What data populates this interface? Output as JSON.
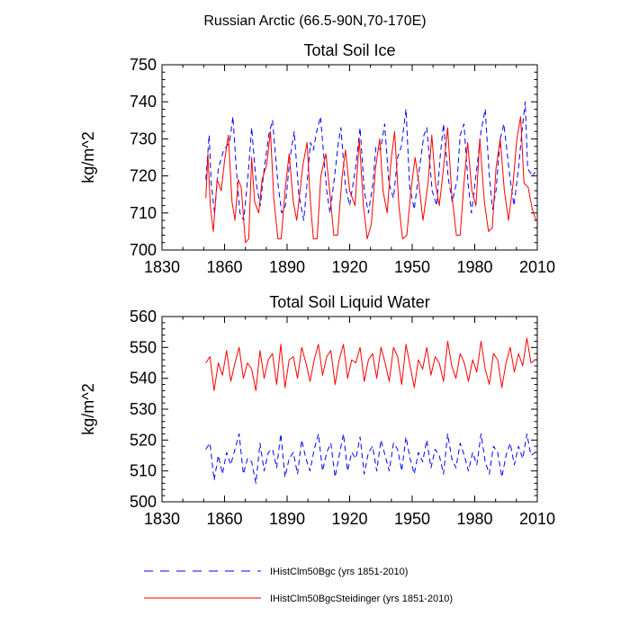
{
  "figure": {
    "title": "Russian Arctic (66.5-90N,70-170E)"
  },
  "chart_data": [
    {
      "type": "line",
      "title": "Total Soil Ice",
      "xlabel": "",
      "ylabel": "kg/m^2",
      "xlim": [
        1830,
        2010
      ],
      "ylim": [
        700,
        750
      ],
      "x_ticks": [
        1830,
        1860,
        1890,
        1920,
        1950,
        1980,
        2010
      ],
      "y_ticks": [
        700,
        710,
        720,
        730,
        740,
        750
      ],
      "grid": false,
      "series": [
        {
          "name": "IHistClm50Bgc (yrs 1851-2010)",
          "color": "#0000ff",
          "style": "dashed",
          "x": [
            1851.0,
            1852.6,
            1853.6,
            1855.2,
            1857.0,
            1859.6,
            1862.4,
            1864.0,
            1865.6,
            1867.4,
            1869.2,
            1871.4,
            1873.0,
            1875.2,
            1877.2,
            1878.6,
            1881.2,
            1883.0,
            1885.6,
            1887.4,
            1889.2,
            1891.2,
            1893.4,
            1895.6,
            1898.0,
            1899.6,
            1901.2,
            1902.6,
            1904.2,
            1906.0,
            1909.0,
            1910.6,
            1912.8,
            1914.6,
            1915.8,
            1918.0,
            1920.0,
            1922.8,
            1925.0,
            1927.0,
            1929.0,
            1931.2,
            1932.6,
            1934.8,
            1936.8,
            1938.8,
            1941.0,
            1943.0,
            1944.8,
            1947.0,
            1948.8,
            1951.0,
            1953.0,
            1955.6,
            1957.0,
            1959.6,
            1961.8,
            1963.2,
            1965.0,
            1967.4,
            1969.2,
            1971.6,
            1973.0,
            1974.8,
            1976.8,
            1978.4,
            1981.0,
            1983.0,
            1985.0,
            1987.0,
            1988.6,
            1990.2,
            1992.2,
            1994.0,
            1996.8,
            1998.8,
            2001.0,
            2002.6,
            2004.2,
            2005.4,
            2007.6,
            2009.0
          ],
          "y": [
            719,
            731,
            718,
            710,
            722,
            727,
            729,
            736,
            722,
            710,
            708,
            721,
            733,
            718,
            712,
            720,
            731,
            735,
            718,
            710,
            712,
            724,
            732,
            715,
            708,
            718,
            729,
            727,
            732,
            736,
            716,
            710,
            720,
            729,
            733,
            717,
            712,
            722,
            733,
            716,
            710,
            718,
            728,
            727,
            734,
            718,
            714,
            725,
            728,
            738,
            717,
            711,
            720,
            731,
            733,
            716,
            712,
            724,
            734,
            719,
            713,
            719,
            731,
            734,
            718,
            710,
            722,
            732,
            738,
            720,
            711,
            716,
            730,
            734,
            720,
            712,
            722,
            732,
            740,
            722,
            720,
            721
          ]
        },
        {
          "name": "IHistClm50BgcSteidinger (yrs 1851-2010)",
          "color": "#ff0000",
          "style": "solid",
          "x": [
            1851.0,
            1852.0,
            1853.2,
            1854.6,
            1856.4,
            1858.4,
            1860.0,
            1861.8,
            1863.6,
            1865.0,
            1866.6,
            1868.0,
            1870.0,
            1871.6,
            1873.0,
            1874.4,
            1876.4,
            1878.0,
            1880.2,
            1882.0,
            1883.6,
            1885.6,
            1887.2,
            1889.0,
            1891.0,
            1893.0,
            1894.6,
            1896.2,
            1897.6,
            1899.6,
            1901.2,
            1902.6,
            1904.4,
            1906.2,
            1908.6,
            1910.6,
            1912.4,
            1914.2,
            1916.4,
            1918.0,
            1920.0,
            1922.6,
            1924.6,
            1926.6,
            1928.4,
            1930.4,
            1932.4,
            1934.4,
            1936.0,
            1938.0,
            1939.8,
            1941.6,
            1943.6,
            1945.4,
            1947.4,
            1949.4,
            1951.4,
            1953.2,
            1955.2,
            1957.6,
            1959.4,
            1961.2,
            1963.0,
            1965.2,
            1967.0,
            1969.0,
            1971.2,
            1973.0,
            1974.8,
            1976.6,
            1978.6,
            1980.6,
            1982.4,
            1984.6,
            1986.6,
            1988.4,
            1990.2,
            1992.2,
            1994.2,
            1996.2,
            1998.4,
            2000.2,
            2002.0,
            2003.6,
            2005.6,
            2007.6,
            2009.4
          ],
          "y": [
            714,
            726,
            712,
            705,
            719,
            716,
            724,
            731,
            713,
            708,
            719,
            717,
            702,
            703,
            725,
            713,
            710,
            719,
            723,
            732,
            714,
            703,
            703,
            716,
            726,
            713,
            708,
            716,
            723,
            729,
            713,
            703,
            703,
            720,
            726,
            715,
            704,
            704,
            720,
            727,
            716,
            712,
            730,
            712,
            703,
            707,
            722,
            730,
            716,
            710,
            724,
            732,
            712,
            703,
            704,
            716,
            725,
            718,
            708,
            718,
            731,
            718,
            712,
            723,
            733,
            715,
            704,
            704,
            718,
            729,
            716,
            712,
            730,
            713,
            705,
            706,
            722,
            730,
            716,
            708,
            718,
            730,
            736,
            718,
            717,
            711,
            708
          ]
        }
      ]
    },
    {
      "type": "line",
      "title": "Total Soil Liquid Water",
      "xlabel": "",
      "ylabel": "kg/m^2",
      "xlim": [
        1830,
        2010
      ],
      "ylim": [
        500,
        560
      ],
      "x_ticks": [
        1830,
        1860,
        1890,
        1920,
        1950,
        1980,
        2010
      ],
      "y_ticks": [
        500,
        510,
        520,
        530,
        540,
        550,
        560
      ],
      "grid": false,
      "series": [
        {
          "name": "IHistClm50Bgc (yrs 1851-2010)",
          "color": "#0000ff",
          "style": "dashed",
          "x": [
            1851,
            1853,
            1855,
            1857,
            1859,
            1861,
            1863,
            1865,
            1867,
            1869,
            1871,
            1873,
            1875,
            1877,
            1879,
            1881,
            1883,
            1885,
            1887,
            1889,
            1891,
            1893,
            1895,
            1897,
            1899,
            1901,
            1903,
            1905,
            1907,
            1909,
            1911,
            1913,
            1915,
            1917,
            1919,
            1921,
            1923,
            1925,
            1927,
            1929,
            1931,
            1933,
            1935,
            1937,
            1939,
            1941,
            1943,
            1945,
            1947,
            1949,
            1951,
            1953,
            1955,
            1957,
            1959,
            1961,
            1963,
            1965,
            1967,
            1969,
            1971,
            1973,
            1975,
            1977,
            1979,
            1981,
            1983,
            1985,
            1987,
            1989,
            1991,
            1993,
            1995,
            1997,
            1999,
            2001,
            2003,
            2005,
            2007,
            2009
          ],
          "y": [
            517,
            519,
            507,
            515,
            509,
            516,
            512,
            517,
            522,
            509,
            514,
            513,
            506,
            519,
            510,
            516,
            517,
            511,
            522,
            508,
            514,
            516,
            509,
            520,
            514,
            510,
            517,
            522,
            510,
            516,
            519,
            508,
            515,
            522,
            510,
            516,
            514,
            521,
            509,
            516,
            518,
            510,
            520,
            515,
            510,
            519,
            517,
            510,
            521,
            514,
            509,
            516,
            513,
            520,
            511,
            517,
            515,
            509,
            522,
            514,
            511,
            519,
            515,
            510,
            516,
            512,
            522,
            513,
            509,
            518,
            516,
            508,
            515,
            519,
            512,
            518,
            514,
            522,
            515,
            516
          ]
        },
        {
          "name": "IHistClm50BgcSteidinger (yrs 1851-2010)",
          "color": "#ff0000",
          "style": "solid",
          "x": [
            1851,
            1853,
            1855,
            1857,
            1859,
            1861,
            1863,
            1865,
            1867,
            1869,
            1871,
            1873,
            1875,
            1877,
            1879,
            1881,
            1883,
            1885,
            1887,
            1889,
            1891,
            1893,
            1895,
            1897,
            1899,
            1901,
            1903,
            1905,
            1907,
            1909,
            1911,
            1913,
            1915,
            1917,
            1919,
            1921,
            1923,
            1925,
            1927,
            1929,
            1931,
            1933,
            1935,
            1937,
            1939,
            1941,
            1943,
            1945,
            1947,
            1949,
            1951,
            1953,
            1955,
            1957,
            1959,
            1961,
            1963,
            1965,
            1967,
            1969,
            1971,
            1973,
            1975,
            1977,
            1979,
            1981,
            1983,
            1985,
            1987,
            1989,
            1991,
            1993,
            1995,
            1997,
            1999,
            2001,
            2003,
            2005,
            2007,
            2009
          ],
          "y": [
            545,
            547,
            536,
            545,
            541,
            549,
            539,
            545,
            550,
            540,
            545,
            543,
            536,
            549,
            540,
            546,
            548,
            538,
            551,
            537,
            546,
            547,
            540,
            550,
            545,
            539,
            546,
            551,
            541,
            547,
            549,
            538,
            546,
            551,
            540,
            546,
            545,
            550,
            539,
            546,
            548,
            540,
            550,
            545,
            539,
            550,
            547,
            538,
            551,
            544,
            537,
            546,
            543,
            550,
            541,
            547,
            545,
            539,
            552,
            544,
            540,
            548,
            545,
            539,
            546,
            542,
            552,
            543,
            538,
            548,
            546,
            537,
            545,
            550,
            542,
            548,
            544,
            553,
            545,
            546
          ]
        }
      ]
    }
  ],
  "legend": {
    "placement": "bottom",
    "entries": [
      {
        "label": "IHistClm50Bgc (yrs 1851-2010)",
        "color": "#0000ff",
        "style": "dashed"
      },
      {
        "label": "IHistClm50BgcSteidinger (yrs 1851-2010)",
        "color": "#ff0000",
        "style": "solid"
      }
    ]
  }
}
